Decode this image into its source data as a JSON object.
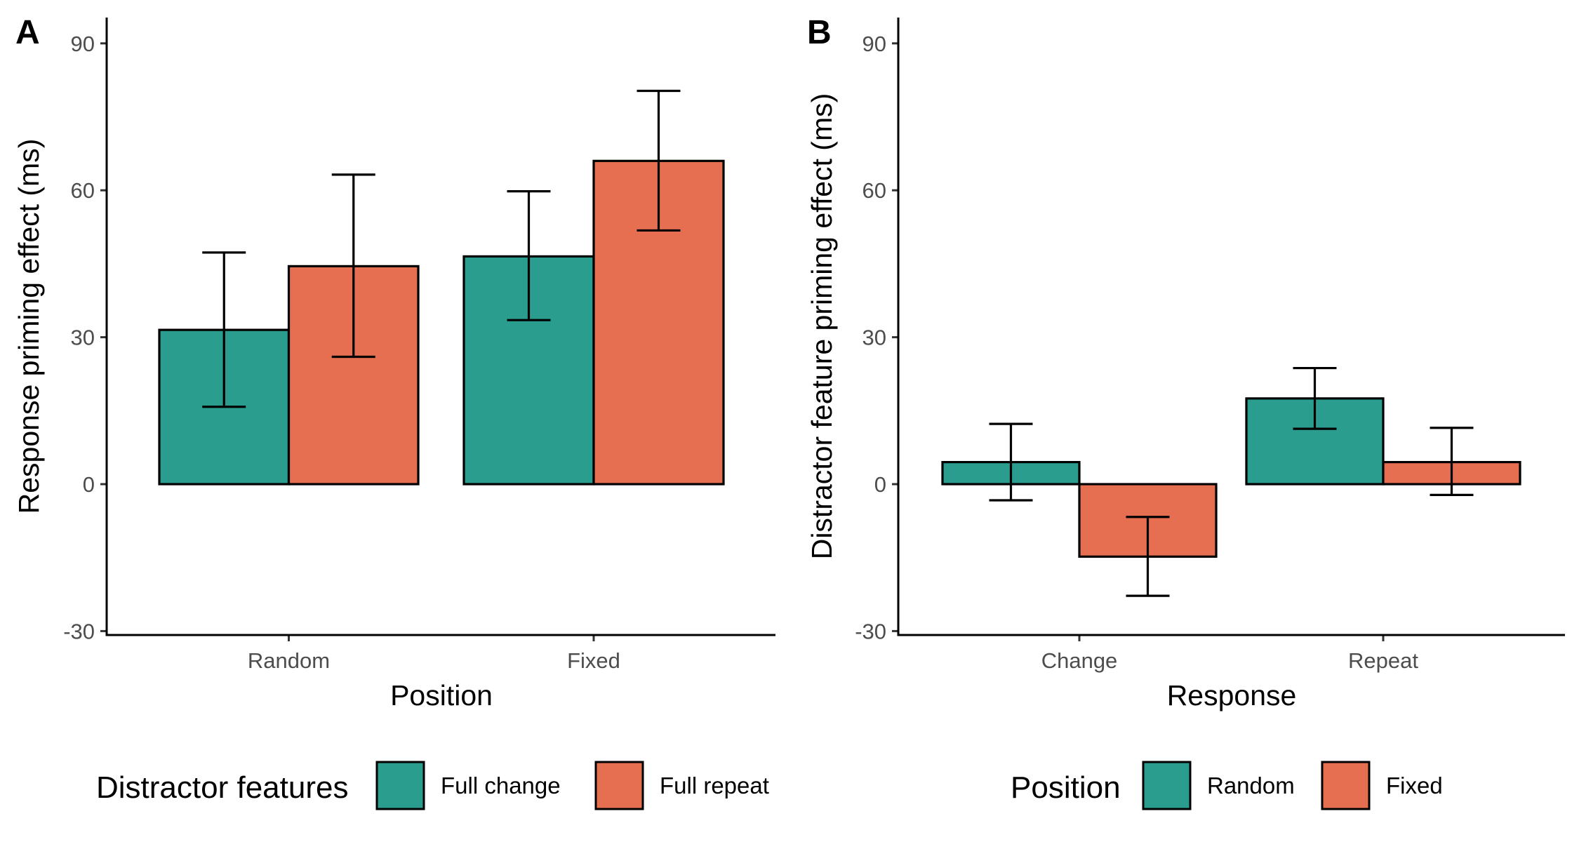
{
  "colors": {
    "series1": "#2a9d8f",
    "series2": "#e76f51",
    "outline": "#000000"
  },
  "chart_data": [
    {
      "type": "bar",
      "panel_label": "A",
      "xlabel": "Position",
      "ylabel": "Response priming effect (ms)",
      "ylim": [
        -30,
        95
      ],
      "yticks": [
        -30,
        0,
        30,
        60,
        90
      ],
      "categories": [
        "Random",
        "Fixed"
      ],
      "legend_title": "Distractor features",
      "legend_position": "bottom",
      "grid": false,
      "series": [
        {
          "name": "Full change",
          "values": [
            31.5,
            46.5
          ],
          "err_low": [
            15.8,
            33.5
          ],
          "err_high": [
            47.3,
            59.8
          ]
        },
        {
          "name": "Full repeat",
          "values": [
            44.5,
            66.0
          ],
          "err_low": [
            26.0,
            51.8
          ],
          "err_high": [
            63.2,
            80.3
          ]
        }
      ]
    },
    {
      "type": "bar",
      "panel_label": "B",
      "xlabel": "Response",
      "ylabel": "Distractor feature priming effect (ms)",
      "ylim": [
        -30,
        95
      ],
      "yticks": [
        -30,
        0,
        30,
        60,
        90
      ],
      "categories": [
        "Change",
        "Repeat"
      ],
      "legend_title": "Position",
      "legend_position": "bottom",
      "grid": false,
      "series": [
        {
          "name": "Random",
          "values": [
            4.5,
            17.5
          ],
          "err_low": [
            -3.3,
            11.3
          ],
          "err_high": [
            12.3,
            23.7
          ]
        },
        {
          "name": "Fixed",
          "values": [
            -14.8,
            4.5
          ],
          "err_low": [
            -22.8,
            -2.2
          ],
          "err_high": [
            -6.7,
            11.5
          ]
        }
      ]
    }
  ]
}
